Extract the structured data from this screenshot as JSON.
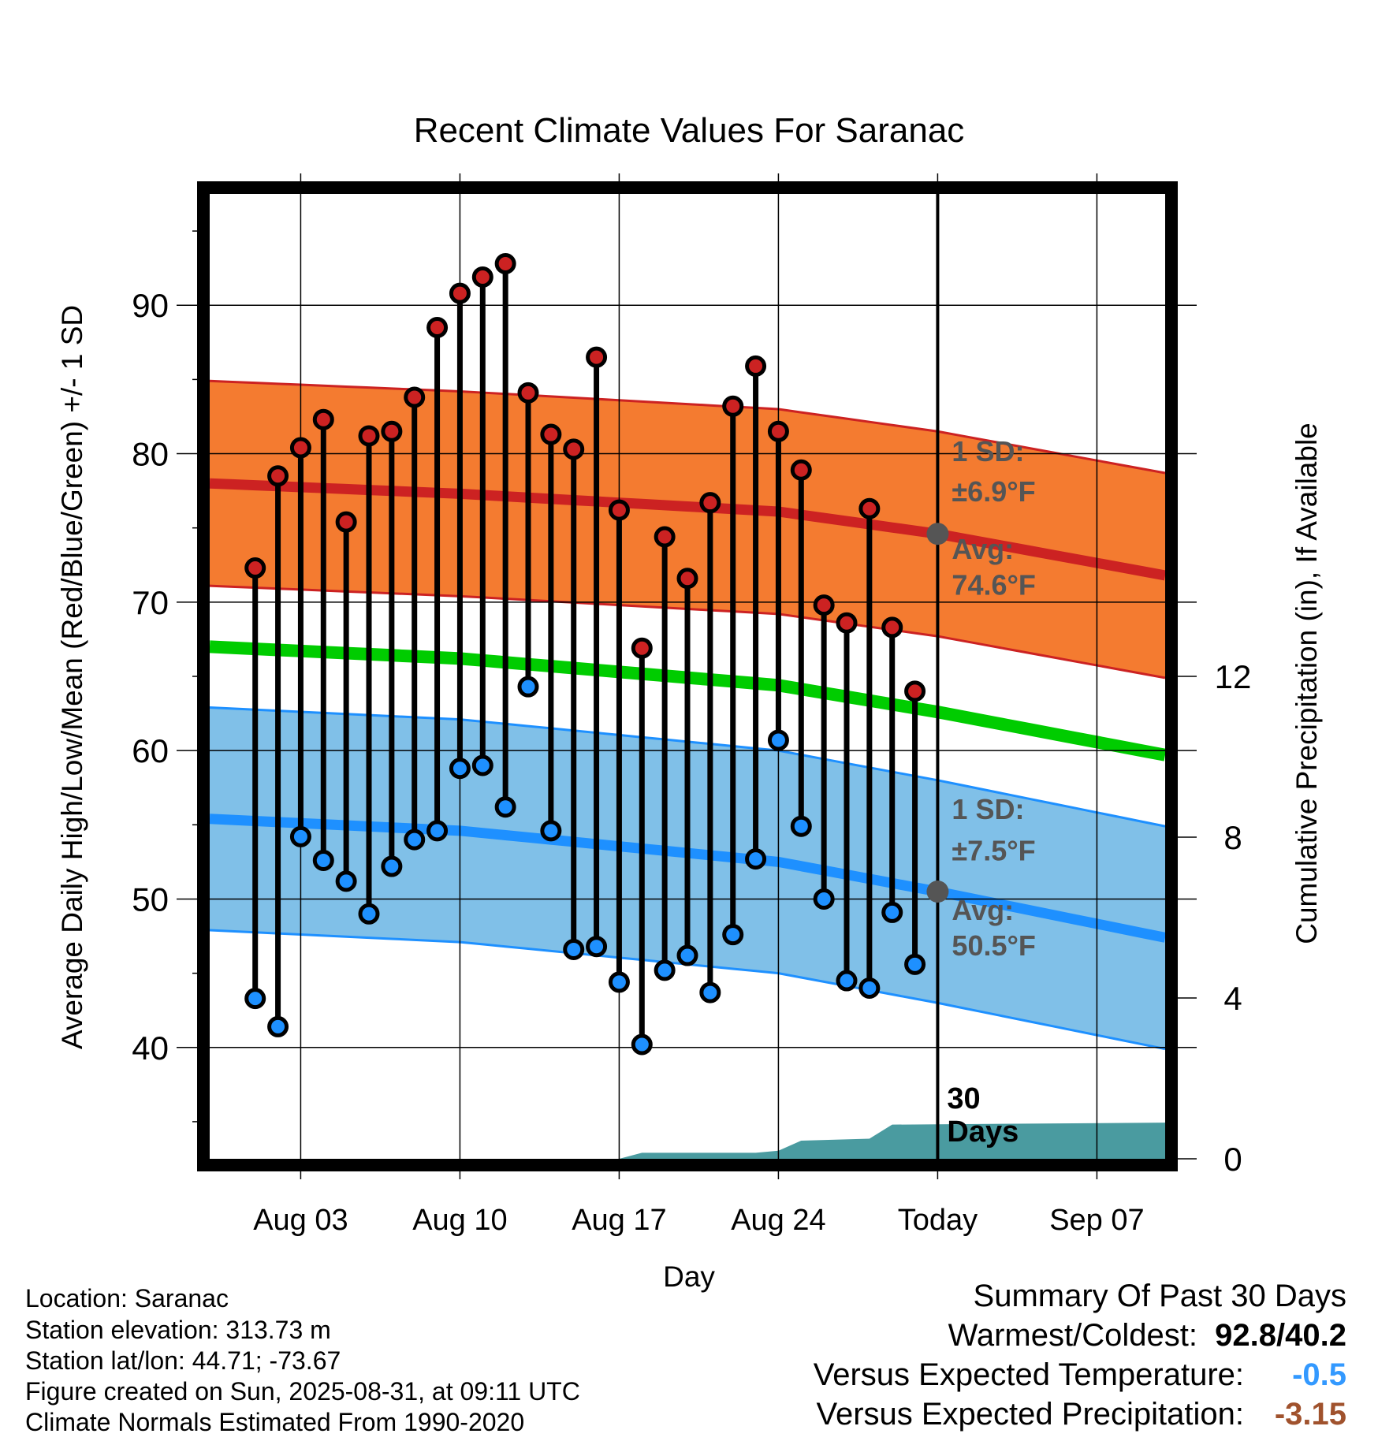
{
  "chart_data": {
    "type": "line",
    "title": "Recent Climate Values For Saranac",
    "xlabel": "Day",
    "ylabel": "Average Daily High/Low/Mean (Red/Blue/Green) +/- 1 SD",
    "y2label": "Cumulative Precipitation (in), If Available",
    "x_ticks": [
      "Aug 03",
      "Aug 10",
      "Aug 17",
      "Aug 24",
      "Today",
      "Sep 07"
    ],
    "y_ticks": [
      40,
      50,
      60,
      70,
      80,
      90
    ],
    "y2_ticks": [
      0,
      4,
      8,
      12
    ],
    "ylim": [
      32.5,
      97.5
    ],
    "y2lim": [
      0,
      24
    ],
    "xlim": [
      "Jul 30",
      "Sep 10"
    ],
    "grid": true,
    "days": [
      "Aug 01",
      "Aug 02",
      "Aug 03",
      "Aug 04",
      "Aug 05",
      "Aug 06",
      "Aug 07",
      "Aug 08",
      "Aug 09",
      "Aug 10",
      "Aug 11",
      "Aug 12",
      "Aug 13",
      "Aug 14",
      "Aug 15",
      "Aug 16",
      "Aug 17",
      "Aug 18",
      "Aug 19",
      "Aug 20",
      "Aug 21",
      "Aug 22",
      "Aug 23",
      "Aug 24",
      "Aug 25",
      "Aug 26",
      "Aug 27",
      "Aug 28",
      "Aug 29",
      "Aug 30"
    ],
    "highs": [
      72.3,
      78.5,
      80.4,
      82.3,
      75.4,
      81.2,
      81.5,
      83.8,
      88.5,
      90.8,
      91.9,
      92.8,
      84.1,
      81.3,
      80.3,
      86.5,
      76.2,
      66.9,
      74.4,
      71.6,
      76.7,
      83.2,
      85.9,
      81.5,
      78.9,
      69.8,
      68.6,
      76.3,
      68.3,
      64.0
    ],
    "lows": [
      43.3,
      41.4,
      54.2,
      52.6,
      51.2,
      49.0,
      52.2,
      54.0,
      54.6,
      58.8,
      59.0,
      56.2,
      64.3,
      54.6,
      46.6,
      46.8,
      44.4,
      40.2,
      45.2,
      46.2,
      43.7,
      47.6,
      52.7,
      60.7,
      54.9,
      50.0,
      44.5,
      44.0,
      49.1,
      45.6
    ],
    "normal_high": [
      {
        "x": "Jul 30",
        "y": 78.0
      },
      {
        "x": "Aug 10",
        "y": 77.3
      },
      {
        "x": "Aug 24",
        "y": 76.1
      },
      {
        "x": "Aug 31",
        "y": 74.6
      },
      {
        "x": "Sep 10",
        "y": 71.8
      }
    ],
    "normal_high_sd": 6.9,
    "normal_low": [
      {
        "x": "Jul 30",
        "y": 55.4
      },
      {
        "x": "Aug 10",
        "y": 54.6
      },
      {
        "x": "Aug 24",
        "y": 52.5
      },
      {
        "x": "Aug 31",
        "y": 50.5
      },
      {
        "x": "Sep 10",
        "y": 47.4
      }
    ],
    "normal_low_sd": 7.5,
    "normal_mean": [
      {
        "x": "Jul 30",
        "y": 67.0
      },
      {
        "x": "Aug 10",
        "y": 66.2
      },
      {
        "x": "Aug 24",
        "y": 64.4
      },
      {
        "x": "Aug 31",
        "y": 62.6
      },
      {
        "x": "Sep 10",
        "y": 59.7
      }
    ],
    "precip_cumulative": [
      {
        "x": "Aug 17",
        "y": 0.0
      },
      {
        "x": "Aug 18",
        "y": 0.15
      },
      {
        "x": "Aug 23",
        "y": 0.15
      },
      {
        "x": "Aug 24",
        "y": 0.2
      },
      {
        "x": "Aug 25",
        "y": 0.45
      },
      {
        "x": "Aug 28",
        "y": 0.5
      },
      {
        "x": "Aug 29",
        "y": 0.85
      },
      {
        "x": "Sep 10",
        "y": 0.9
      }
    ],
    "high_sd_label": "1 SD:",
    "high_sd_value": "±6.9°F",
    "high_avg_label": "Avg:",
    "high_avg_value": "74.6°F",
    "low_sd_label": "1 SD:",
    "low_sd_value": "±7.5°F",
    "low_avg_label": "Avg:",
    "low_avg_value": "50.5°F",
    "days_label_num": "30",
    "days_label_word": "Days",
    "colors": {
      "high": "#cc2222",
      "high_band": "#f47b30",
      "low": "#1e90ff",
      "low_band": "#80c0e8",
      "mean": "#00cc00",
      "precip": "#4a9ba0",
      "annotation": "#555555"
    }
  },
  "info": {
    "location": "Location: Saranac",
    "elevation": "Station elevation: 313.73 m",
    "latlon": "Station lat/lon: 44.71; -73.67",
    "created": "Figure created on Sun, 2025-08-31, at 09:11 UTC",
    "normals": "Climate Normals Estimated From 1990-2020"
  },
  "summary": {
    "title": "Summary Of Past 30 Days",
    "warm_cold_label": "Warmest/Coldest:",
    "warm_cold_value": "92.8/40.2",
    "temp_label": "Versus Expected Temperature:",
    "temp_value": "-0.5",
    "temp_color": "#3399ff",
    "precip_label": "Versus Expected Precipitation:",
    "precip_value": "-3.15",
    "precip_color": "#a0522d"
  }
}
